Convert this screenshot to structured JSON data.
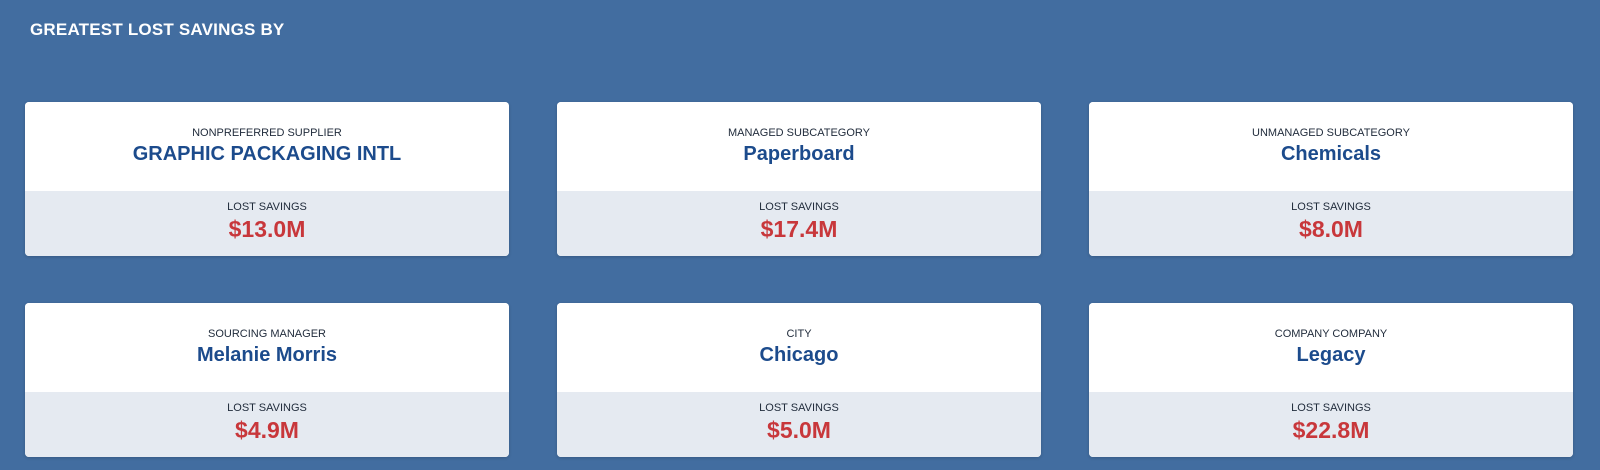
{
  "header": {
    "title": "GREATEST LOST SAVINGS BY"
  },
  "cards": [
    {
      "dimension_label": "NONPREFERRED SUPPLIER",
      "dimension_value": "GRAPHIC PACKAGING INTL",
      "metric_label": "LOST SAVINGS",
      "metric_value": "$13.0M"
    },
    {
      "dimension_label": "MANAGED SUBCATEGORY",
      "dimension_value": "Paperboard",
      "metric_label": "LOST SAVINGS",
      "metric_value": "$17.4M"
    },
    {
      "dimension_label": "UNMANAGED SUBCATEGORY",
      "dimension_value": "Chemicals",
      "metric_label": "LOST SAVINGS",
      "metric_value": "$8.0M"
    },
    {
      "dimension_label": "SOURCING MANAGER",
      "dimension_value": "Melanie Morris",
      "metric_label": "LOST SAVINGS",
      "metric_value": "$4.9M"
    },
    {
      "dimension_label": "CITY",
      "dimension_value": "Chicago",
      "metric_label": "LOST SAVINGS",
      "metric_value": "$5.0M"
    },
    {
      "dimension_label": "COMPANY COMPANY",
      "dimension_value": "Legacy",
      "metric_label": "LOST SAVINGS",
      "metric_value": "$22.8M"
    }
  ],
  "colors": {
    "background": "#426da0",
    "card_background": "#ffffff",
    "card_footer_background": "#e5eaf1",
    "dimension_value": "#1c4b8c",
    "metric_value": "#c8373b"
  }
}
